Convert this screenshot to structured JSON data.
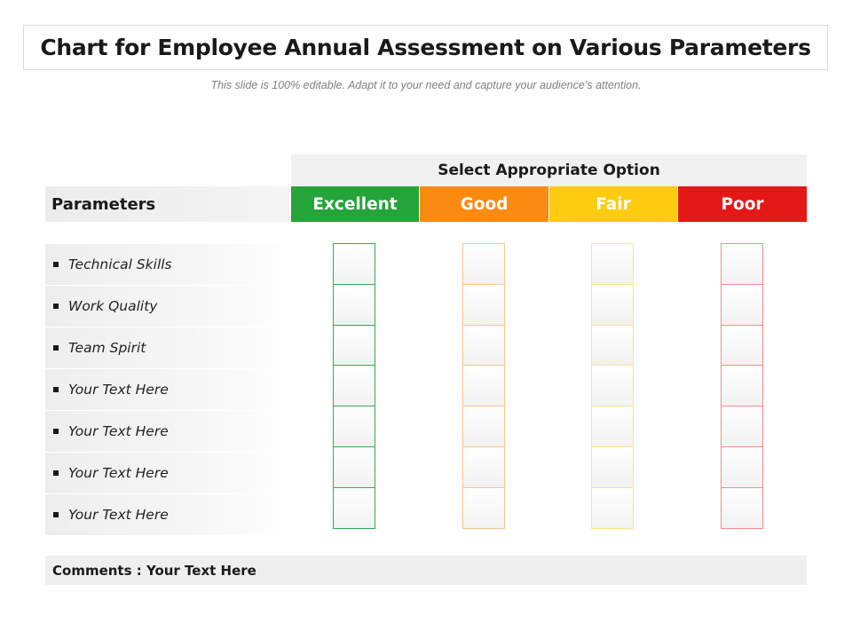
{
  "title": "Chart for Employee Annual Assessment on Various Parameters",
  "subtitle": "This slide is 100% editable. Adapt it to your need and capture your audience’s attention.",
  "table": {
    "select_header": "Select Appropriate Option",
    "parameters_header": "Parameters",
    "ratings": [
      {
        "label": "Excellent",
        "color": "#25a43a"
      },
      {
        "label": "Good",
        "color": "#fb8a11"
      },
      {
        "label": "Fair",
        "color": "#fdcb0f"
      },
      {
        "label": "Poor",
        "color": "#e51818"
      }
    ],
    "parameters": [
      "Technical Skills",
      "Work Quality",
      "Team Spirit",
      "Your Text Here",
      "Your Text Here",
      "Your Text Here",
      "Your Text Here"
    ],
    "comments": "Comments : Your Text Here"
  }
}
